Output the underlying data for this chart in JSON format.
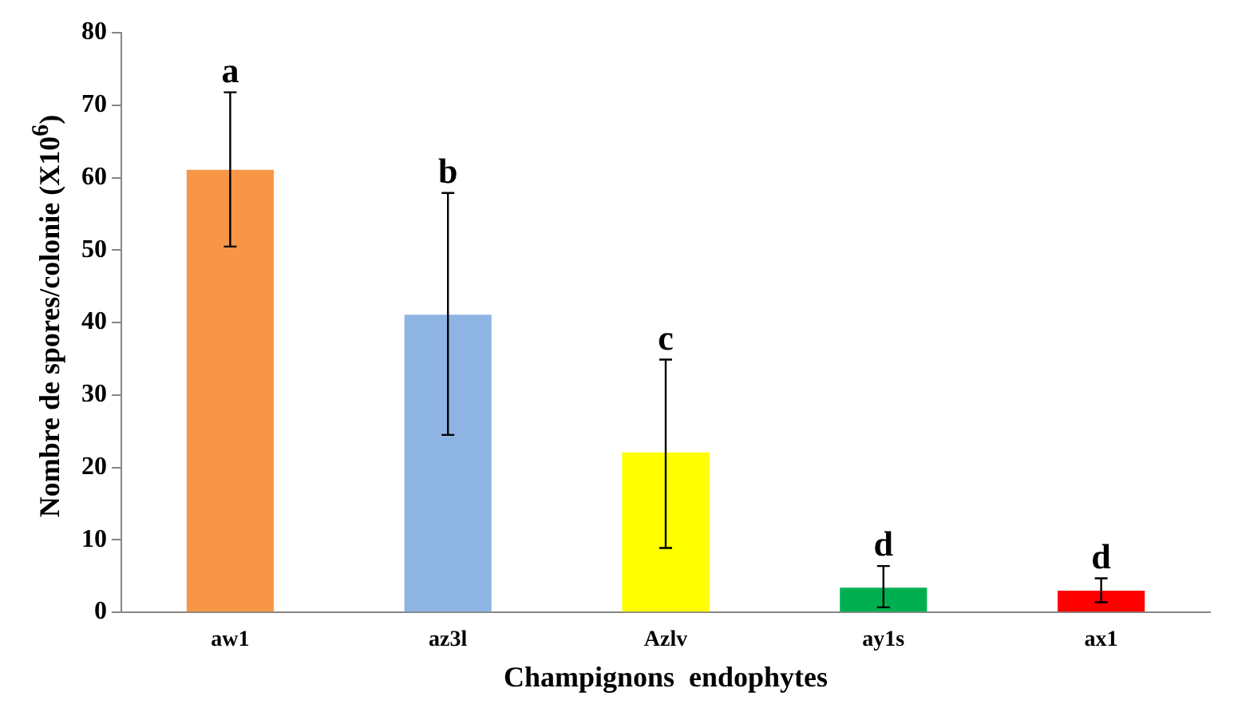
{
  "chart_data": {
    "type": "bar",
    "xlabel": "Champignons  endophytes",
    "ylabel": "Nombre de spores/colonie (X10$^{6}$)",
    "categories": [
      "aw1",
      "az3l",
      "Azlv",
      "ay1s",
      "ax1"
    ],
    "values": [
      61.1,
      41.1,
      22.1,
      3.4,
      3.0
    ],
    "colors": [
      "#f79646",
      "#8eb4e3",
      "#ffff00",
      "#00b050",
      "#ff0000"
    ],
    "errors": [
      [
        50.5,
        71.8
      ],
      [
        24.5,
        57.9
      ],
      [
        8.9,
        34.9
      ],
      [
        0.7,
        6.4
      ],
      [
        1.4,
        4.7
      ]
    ],
    "ylim": [
      0,
      80
    ],
    "yticks": [
      0,
      10,
      20,
      30,
      40,
      50,
      60,
      70,
      80
    ],
    "grid": false,
    "legend": false,
    "annotations": [
      {
        "text": "a",
        "x": "aw1",
        "y": 71.8
      },
      {
        "text": "b",
        "x": "az3l",
        "y": 57.9
      },
      {
        "text": "c",
        "x": "Azlv",
        "y": 34.9
      },
      {
        "text": "d",
        "x": "ay1s",
        "y": 6.4
      },
      {
        "text": "d",
        "x": "ax1",
        "y": 4.7
      }
    ]
  }
}
